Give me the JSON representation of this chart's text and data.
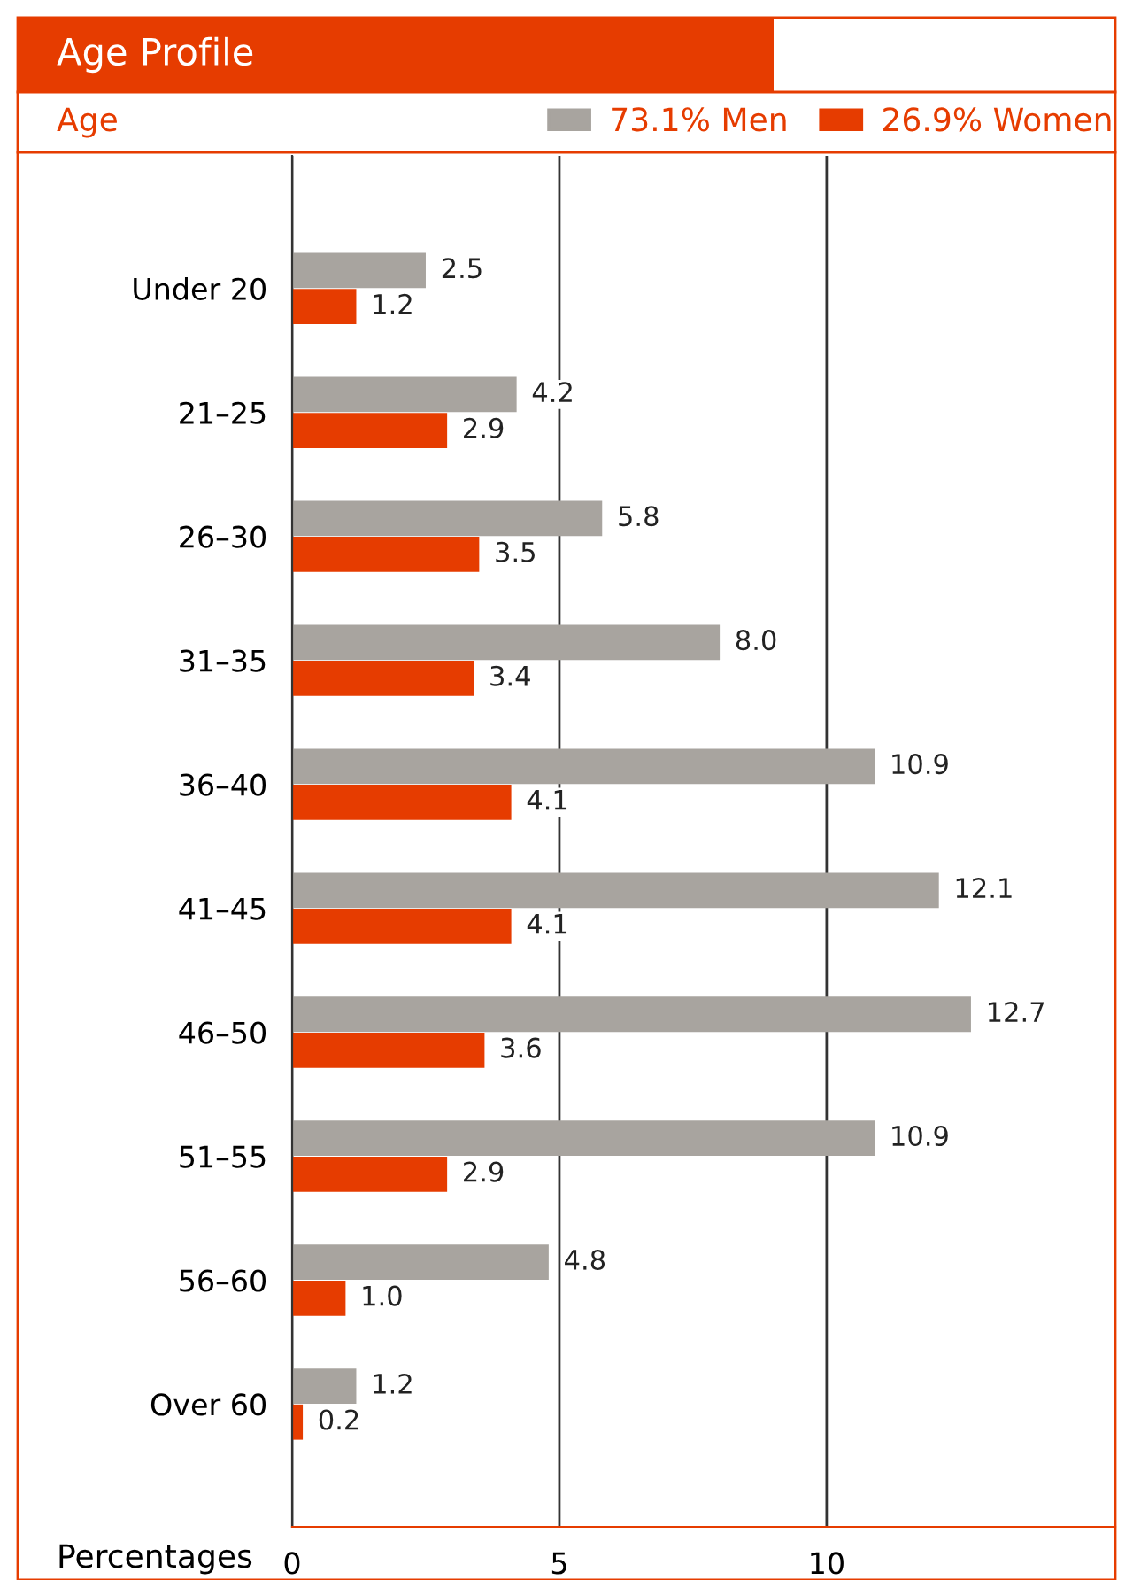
{
  "chart_data": {
    "type": "bar",
    "orientation": "horizontal",
    "title": "Age Profile",
    "subtitle": "Age",
    "xlabel": "Percentages",
    "categories": [
      "Under 20",
      "21–25",
      "26–30",
      "31–35",
      "36–40",
      "41–45",
      "46–50",
      "51–55",
      "56–60",
      "Over 60"
    ],
    "series": [
      {
        "name": "73.1% Men",
        "color": "#a8a49f",
        "values": [
          2.5,
          4.2,
          5.8,
          8.0,
          10.9,
          12.1,
          12.7,
          10.9,
          4.8,
          1.2
        ],
        "value_labels": [
          "2.5",
          "4.2",
          "5.8",
          "8.0",
          "10.9",
          "12.1",
          "12.7",
          "10.9",
          "4.8",
          "1.2"
        ]
      },
      {
        "name": "26.9% Women",
        "color": "#e63c00",
        "values": [
          1.2,
          2.9,
          3.5,
          3.4,
          4.1,
          4.1,
          3.6,
          2.9,
          1.0,
          0.2
        ],
        "value_labels": [
          "1.2",
          "2.9",
          "3.5",
          "3.4",
          "4.1",
          "4.1",
          "3.6",
          "2.9",
          "1.0",
          "0.2"
        ]
      }
    ],
    "xlim": [
      0,
      15.4
    ],
    "xticks": [
      0,
      5,
      10
    ],
    "grid": "x",
    "legend": "top right"
  }
}
